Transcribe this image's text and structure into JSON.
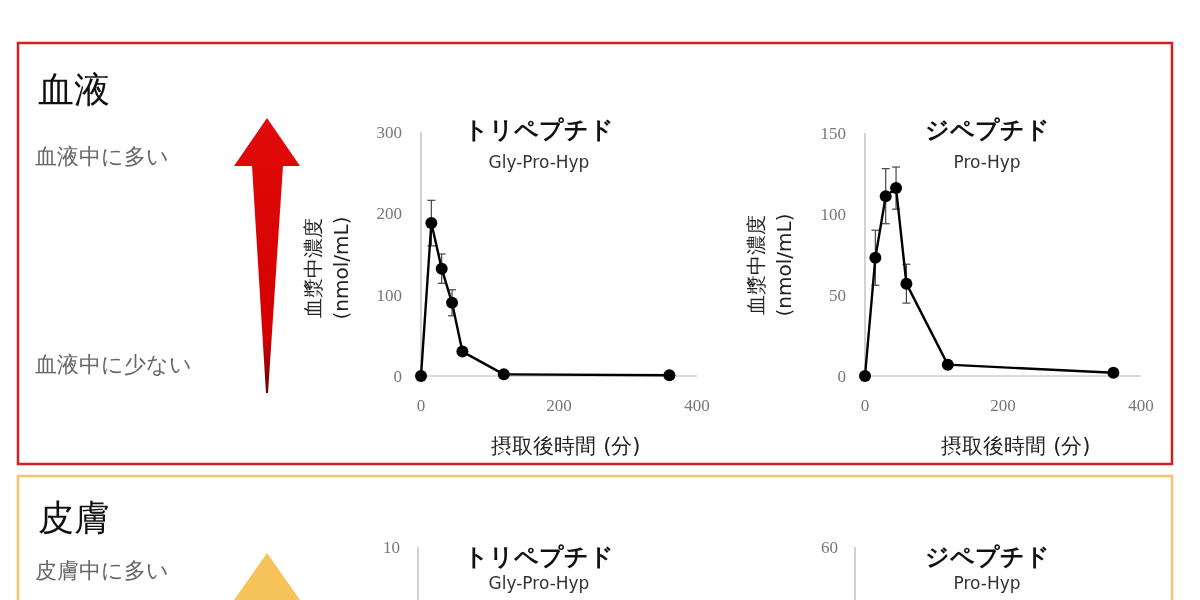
{
  "chart_data": [
    {
      "type": "other",
      "title": "血液",
      "annotations": [
        "血液中に多い",
        "血液中に少ない"
      ]
    },
    {
      "type": "line",
      "title": "トリペプチド",
      "subtitle": "Gly-Pro-Hyp",
      "xlabel": "摂取後時間 (分)",
      "ylabel": "血漿中濃度\n(nmol/mL)",
      "x": [
        0,
        15,
        30,
        45,
        60,
        120,
        360
      ],
      "values": [
        0,
        188,
        132,
        90,
        30,
        2,
        1
      ],
      "errors": [
        null,
        28,
        18,
        16,
        null,
        null,
        null
      ],
      "color": "#000000",
      "marker": "circle",
      "xlim": [
        0,
        400
      ],
      "xticks": [
        0,
        200,
        400
      ],
      "ylim": [
        0,
        300
      ],
      "yticks": [
        0,
        100,
        200,
        300
      ]
    },
    {
      "type": "line",
      "title": "ジペプチド",
      "subtitle": "Pro-Hyp",
      "xlabel": "摂取後時間 (分)",
      "ylabel": "血漿中濃度\n(nmol/mL)",
      "x": [
        0,
        15,
        30,
        45,
        60,
        120,
        360
      ],
      "values": [
        0,
        73,
        111,
        116,
        57,
        7,
        2
      ],
      "errors": [
        null,
        17,
        17,
        13,
        12,
        null,
        null
      ],
      "color": "#000000",
      "marker": "circle",
      "xlim": [
        0,
        400
      ],
      "xticks": [
        0,
        200,
        400
      ],
      "ylim": [
        0,
        150
      ],
      "yticks": [
        0,
        50,
        100,
        150
      ]
    },
    {
      "type": "other",
      "title": "皮膚",
      "annotations": [
        "皮膚中に多い"
      ]
    },
    {
      "type": "other",
      "title": "トリペプチド",
      "subtitle": "Gly-Pro-Hyp",
      "annotations": [
        "10"
      ]
    },
    {
      "type": "other",
      "title": "ジペプチド",
      "subtitle": "Pro-Hyp",
      "annotations": [
        "60"
      ]
    }
  ]
}
